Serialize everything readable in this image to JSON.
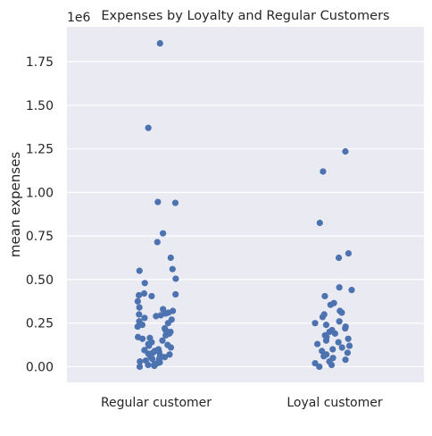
{
  "chart_data": {
    "type": "scatter",
    "title": "Expenses by Loyalty and Regular Customers",
    "xlabel": "",
    "ylabel": "mean expenses",
    "y_multiplier_label": "1e6",
    "categories": [
      "Regular customer",
      "Loyal customer"
    ],
    "ylim": [
      -0.09,
      1.95
    ],
    "yticks": [
      0.0,
      0.25,
      0.5,
      0.75,
      1.0,
      1.25,
      1.5,
      1.75
    ],
    "ytick_labels": [
      "0.00",
      "0.25",
      "0.50",
      "0.75",
      "1.00",
      "1.25",
      "1.50",
      "1.75"
    ],
    "grid": true,
    "background": "#eaeaf2",
    "point_color": "#4c72b0",
    "series": [
      {
        "category": "Regular customer",
        "values": [
          1.855,
          1.37,
          0.945,
          0.94,
          0.765,
          0.715,
          0.625,
          0.56,
          0.55,
          0.505,
          0.48,
          0.42,
          0.415,
          0.41,
          0.405,
          0.375,
          0.34,
          0.33,
          0.32,
          0.31,
          0.305,
          0.3,
          0.295,
          0.29,
          0.28,
          0.27,
          0.26,
          0.25,
          0.24,
          0.23,
          0.22,
          0.21,
          0.2,
          0.195,
          0.19,
          0.18,
          0.17,
          0.165,
          0.16,
          0.15,
          0.14,
          0.13,
          0.125,
          0.12,
          0.11,
          0.1,
          0.095,
          0.09,
          0.085,
          0.08,
          0.075,
          0.07,
          0.065,
          0.06,
          0.055,
          0.05,
          0.045,
          0.04,
          0.035,
          0.03,
          0.025,
          0.02,
          0.015,
          0.01,
          0.005,
          0.0
        ]
      },
      {
        "category": "Loyal customer",
        "values": [
          1.235,
          1.12,
          0.825,
          0.65,
          0.625,
          0.455,
          0.44,
          0.405,
          0.365,
          0.355,
          0.32,
          0.31,
          0.3,
          0.285,
          0.26,
          0.25,
          0.24,
          0.23,
          0.22,
          0.21,
          0.2,
          0.19,
          0.18,
          0.17,
          0.16,
          0.15,
          0.14,
          0.13,
          0.12,
          0.11,
          0.1,
          0.09,
          0.08,
          0.07,
          0.06,
          0.05,
          0.04,
          0.03,
          0.02,
          0.01,
          0.0
        ]
      }
    ]
  }
}
